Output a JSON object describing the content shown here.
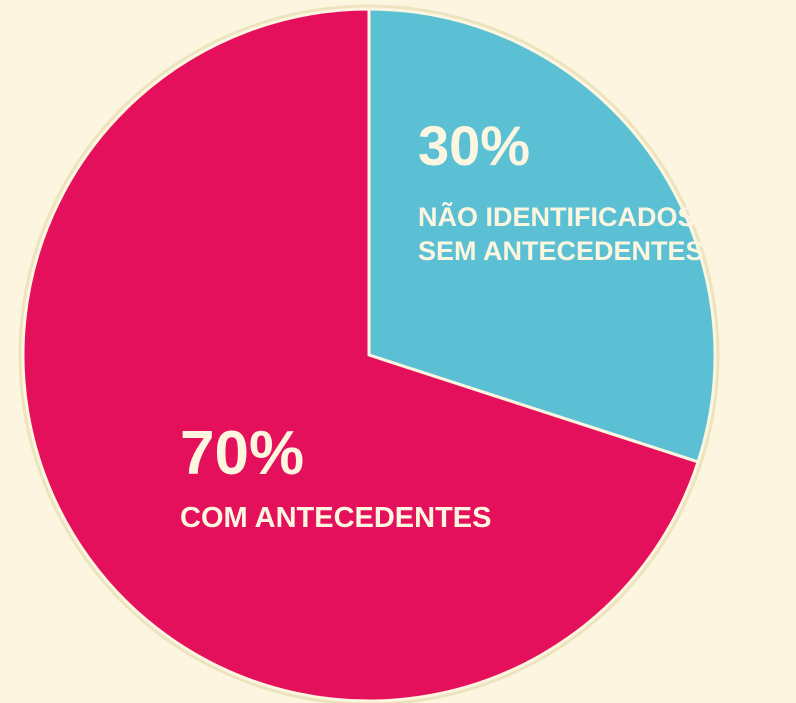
{
  "chart_data": {
    "type": "pie",
    "categories": [
      "NÃO IDENTIFICADOS/\nSEM ANTECEDENTES",
      "COM ANTECEDENTES"
    ],
    "values": [
      30,
      70
    ],
    "value_labels": [
      "30%",
      "70%"
    ],
    "colors": [
      "#5bc0d4",
      "#e5105b"
    ],
    "start": "top",
    "direction": "clockwise"
  }
}
